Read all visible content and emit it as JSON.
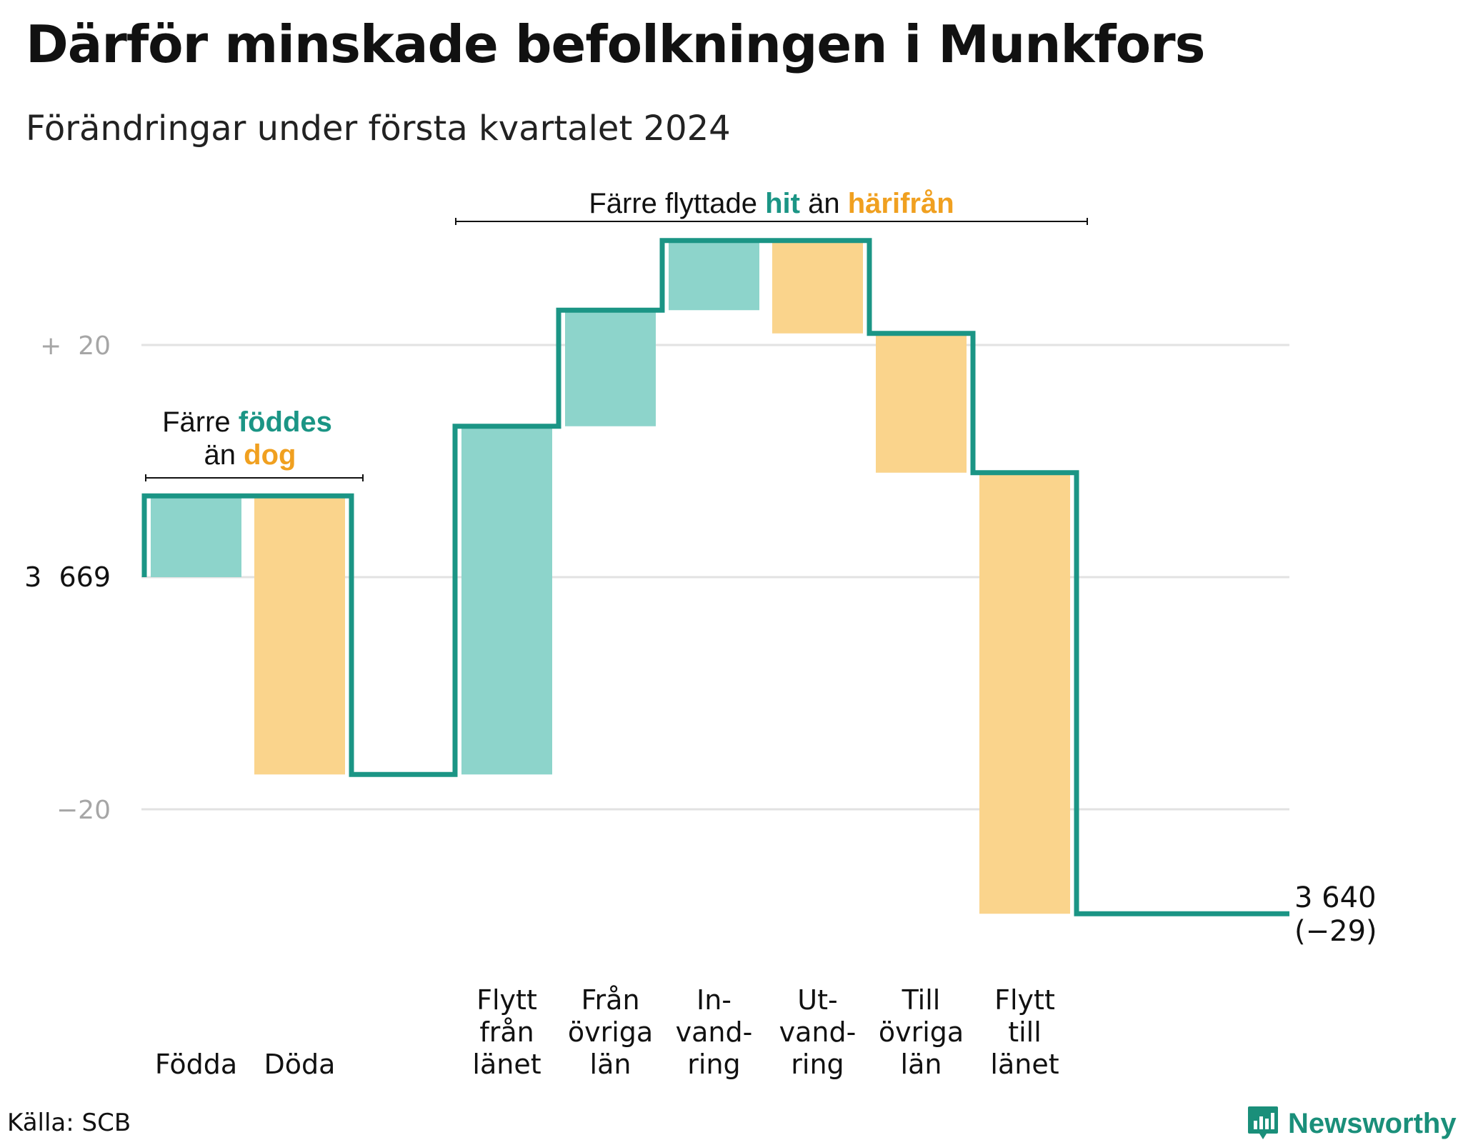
{
  "title": "Därför minskade befolkningen i Munkfors",
  "subtitle": "Förändringar under första kvartalet 2024",
  "source": "Källa: SCB",
  "brand": {
    "name": "Newsworthy"
  },
  "colors": {
    "increase": "#8dd4cb",
    "decrease": "#fad48c",
    "line": "#1b9585",
    "grid": "#e2e2e2",
    "accent_teal": "#1b9585",
    "accent_orange": "#f0a020"
  },
  "annotations": {
    "births": {
      "line1_prefix": "Färre",
      "line1_highlight": "föddes",
      "line2_prefix": "än",
      "line2_highlight": "dog"
    },
    "moves": {
      "prefix": "Färre flyttade",
      "highlight1": "hit",
      "middle": "än",
      "highlight2": "härifrån"
    }
  },
  "chart_data": {
    "type": "waterfall",
    "start_value": 3669,
    "start_label": "3 669",
    "end_value": 3640,
    "end_label": "3 640",
    "end_change_label": "(−29)",
    "ylim": [
      -29,
      33
    ],
    "yticks": [
      {
        "value": 20,
        "label": "+  20"
      },
      {
        "value": 0,
        "label": "3  669"
      },
      {
        "value": -20,
        "label": "−20"
      }
    ],
    "grid": true,
    "steps": [
      {
        "label": [
          "Födda"
        ],
        "value": 7,
        "kind": "increase"
      },
      {
        "label": [
          "Döda"
        ],
        "value": -24,
        "kind": "decrease"
      },
      {
        "label": [
          "",
          "",
          ""
        ],
        "value": 0,
        "kind": "gap"
      },
      {
        "label": [
          "Flytt",
          "från",
          "länet"
        ],
        "value": 30,
        "kind": "increase"
      },
      {
        "label": [
          "Från",
          "övriga",
          "län"
        ],
        "value": 10,
        "kind": "increase"
      },
      {
        "label": [
          "In-",
          "vand-",
          "ring"
        ],
        "value": 6,
        "kind": "increase"
      },
      {
        "label": [
          "Ut-",
          "vand-",
          "ring"
        ],
        "value": -8,
        "kind": "decrease"
      },
      {
        "label": [
          "Till",
          "övriga",
          "län"
        ],
        "value": -12,
        "kind": "decrease"
      },
      {
        "label": [
          "Flytt",
          "till",
          "länet"
        ],
        "value": -38,
        "kind": "decrease"
      }
    ]
  }
}
